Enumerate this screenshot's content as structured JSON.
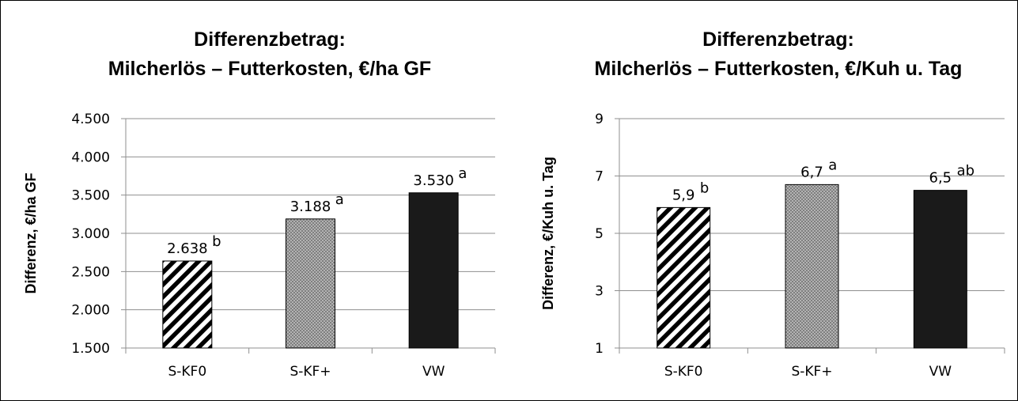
{
  "chart_data": [
    {
      "type": "bar",
      "title_lines": [
        "Differenzbetrag:",
        "Milcherlös – Futterkosten, €/ha GF"
      ],
      "ylabel": "Differenz, €/ha GF",
      "categories": [
        "S-KF0",
        "S-KF+",
        "VW"
      ],
      "values": [
        2638,
        3188,
        3530
      ],
      "value_labels": [
        "2.638",
        "3.188",
        "3.530"
      ],
      "significance": [
        "b",
        "a",
        "a"
      ],
      "ylim": [
        1500,
        4500
      ],
      "yticks": [
        1500,
        2000,
        2500,
        3000,
        3500,
        4000,
        4500
      ],
      "ytick_labels": [
        "1.500",
        "2.000",
        "2.500",
        "3.000",
        "3.500",
        "4.000",
        "4.500"
      ],
      "patterns": [
        "diagonal-hatch",
        "dots",
        "solid"
      ],
      "grid": true
    },
    {
      "type": "bar",
      "title_lines": [
        "Differenzbetrag:",
        "Milcherlös – Futterkosten, €/Kuh u. Tag"
      ],
      "ylabel": "Differenz, €/Kuh u. Tag",
      "categories": [
        "S-KF0",
        "S-KF+",
        "VW"
      ],
      "values": [
        5.9,
        6.7,
        6.5
      ],
      "value_labels": [
        "5,9",
        "6,7",
        "6,5"
      ],
      "significance": [
        "b",
        "a",
        "ab"
      ],
      "ylim": [
        1,
        9
      ],
      "yticks": [
        1,
        3,
        5,
        7,
        9
      ],
      "ytick_labels": [
        "1",
        "3",
        "5",
        "7",
        "9"
      ],
      "patterns": [
        "diagonal-hatch",
        "dots",
        "solid"
      ],
      "grid": true
    }
  ],
  "colors": {
    "bar_solid": "#1a1a1a",
    "dot_fill": "#8c8c8c",
    "grid": "#8f8f8f",
    "axis": "#8f8f8f"
  }
}
